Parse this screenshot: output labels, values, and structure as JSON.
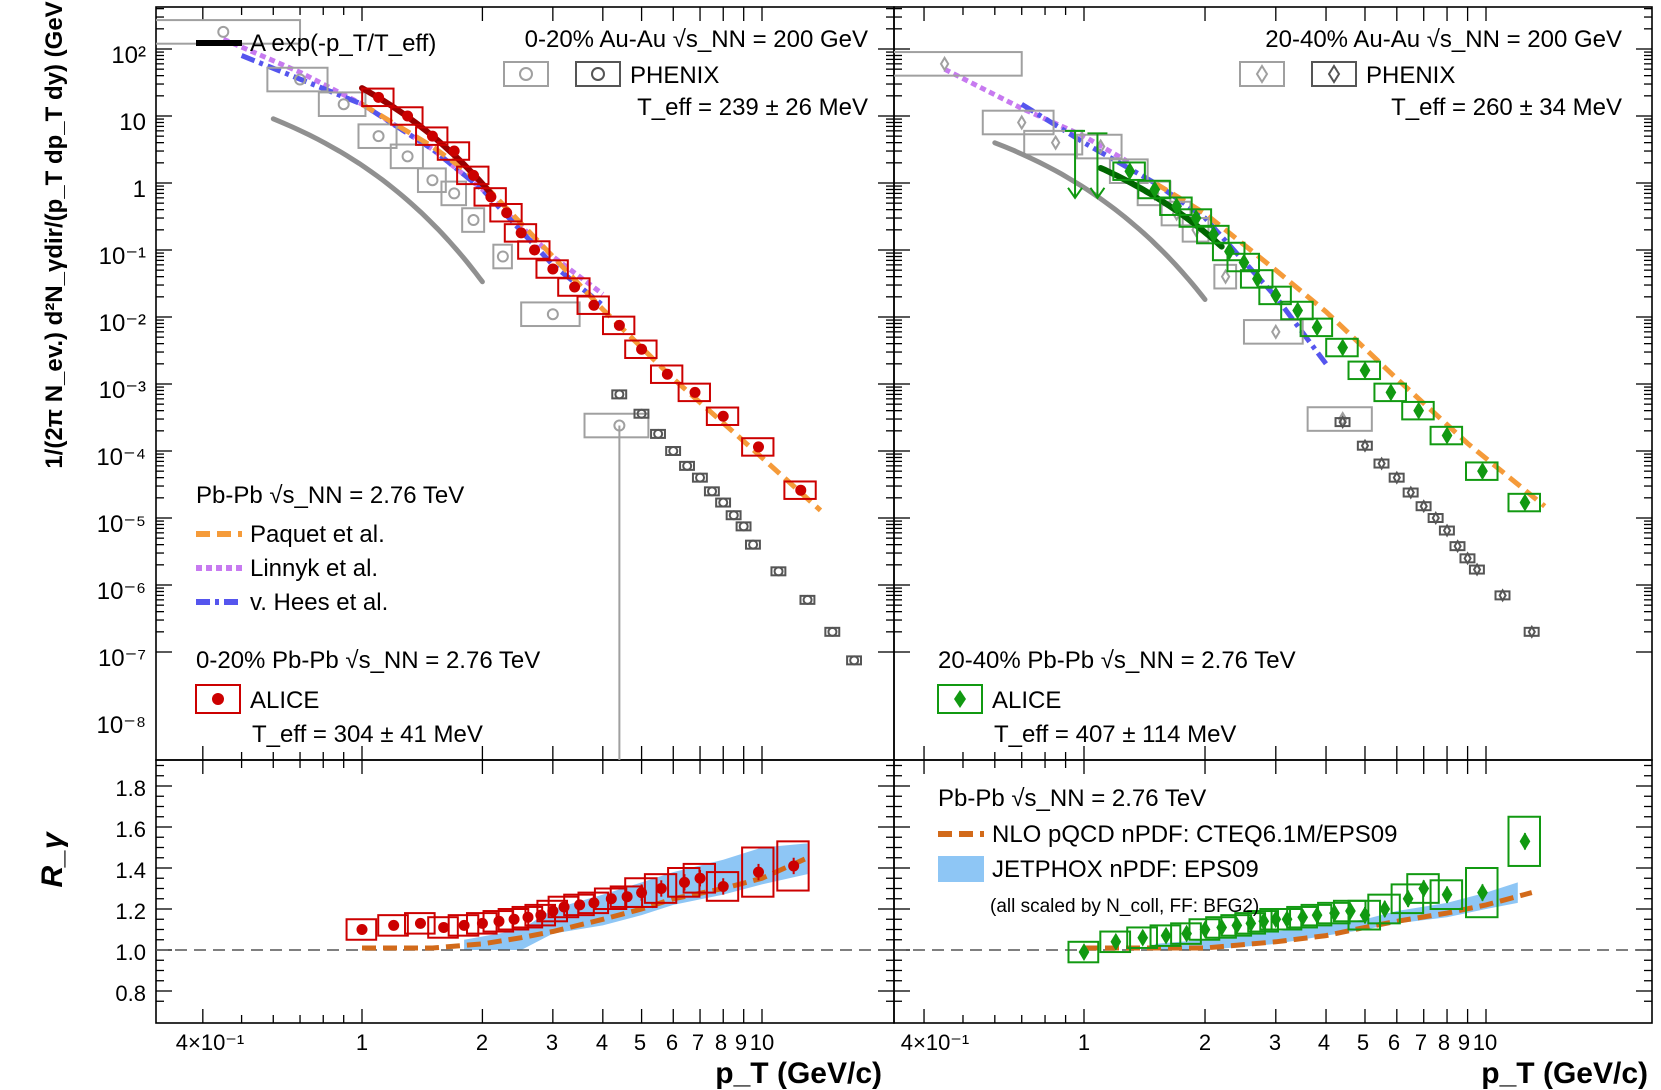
{
  "figure": {
    "x_tick_labels": [
      "4×10⁻¹",
      "1",
      "2",
      "3",
      "4",
      "5",
      "6",
      "7",
      "8",
      "9",
      "10"
    ],
    "x_axis_title": "p_T (GeV/c)",
    "y_axis_title_top": "1/(2π N_ev.) d²N_γdir/(p_T dp_T dy) (GeV⁻²c²)",
    "y_axis_title_bottom": "R_γ",
    "y_tick_labels_top": [
      "10²",
      "10",
      "1",
      "10⁻¹",
      "10⁻²",
      "10⁻³",
      "10⁻⁴",
      "10⁻⁵",
      "10⁻⁶",
      "10⁻⁷",
      "10⁻⁸"
    ],
    "y_tick_labels_bottom": [
      "0.8",
      "1.0",
      "1.2",
      "1.4",
      "1.6",
      "1.8"
    ]
  },
  "legend": {
    "fit_label": "A exp(-p_T/T_eff)",
    "rhic_left": "0-20% Au-Au √s_NN = 200 GeV",
    "rhic_right": "20-40% Au-Au √s_NN = 200 GeV",
    "phenix": "PHENIX",
    "teff_phenix_left": "T_eff = 239 ± 26 MeV",
    "teff_phenix_right": "T_eff = 260 ± 34 MeV",
    "pbpb": "Pb-Pb √s_NN = 2.76 TeV",
    "paquet": "Paquet et al.",
    "linnyk": "Linnyk et al.",
    "vhees": "v. Hees et al.",
    "alice_left_cent": "0-20% Pb-Pb √s_NN = 2.76 TeV",
    "alice_right_cent": "20-40% Pb-Pb √s_NN = 2.76 TeV",
    "alice": "ALICE",
    "teff_alice_left": "T_eff = 304 ± 41 MeV",
    "teff_alice_right": "T_eff = 407 ± 114 MeV",
    "nlo": "NLO pQCD nPDF: CTEQ6.1M/EPS09",
    "jetphox": "JETPHOX nPDF: EPS09",
    "scaled": "(all scaled by N_coll, FF: BFG2)"
  },
  "colors": {
    "alice_020": "#cc0000",
    "alice_2040": "#119911",
    "phenix_light": "#a0a0a0",
    "phenix_dark": "#555555",
    "paquet": "#f59b3a",
    "linnyk": "#c77af0",
    "vhees": "#5555ee",
    "nlo": "#d26a1a",
    "jetphox": "#8ec6f5",
    "fit_020": "#990000",
    "fit_2040": "#006600",
    "fit_phenix": "#909090"
  },
  "chart_data": [
    {
      "panel": "top-left",
      "type": "scatter",
      "x_scale": "log",
      "y_scale": "log",
      "xlim": [
        0.35,
        14.5
      ],
      "ylim": [
        5e-09,
        500
      ],
      "series": [
        {
          "name": "ALICE",
          "x": [
            1.1,
            1.3,
            1.5,
            1.7,
            1.9,
            2.1,
            2.3,
            2.5,
            2.7,
            3.0,
            3.4,
            3.8,
            4.4,
            5.0,
            5.8,
            6.8,
            8.0,
            9.8,
            12.5
          ],
          "y": [
            1.9,
            1.0,
            0.5,
            0.3,
            0.13,
            0.062,
            0.036,
            0.018,
            0.01,
            0.0052,
            0.0028,
            0.0015,
            0.00075,
            0.00033,
            0.00014,
            7.5e-05,
            3.3e-05,
            1.15e-05,
            2.6e-06
          ]
        },
        {
          "name": "PHENIX",
          "x": [
            0.45,
            0.7,
            0.9,
            1.1,
            1.3,
            1.5,
            1.7,
            1.9,
            2.25,
            3.0,
            4.4
          ],
          "y": [
            18,
            3.5,
            1.5,
            0.5,
            0.25,
            0.11,
            0.07,
            0.028,
            0.008,
            0.0011,
            2.4e-05
          ]
        },
        {
          "name": "",
          "x": [
            4.4,
            5.0,
            5.5,
            6.0,
            6.5,
            7.0,
            7.5,
            8.0,
            8.5,
            9.0,
            9.5,
            11,
            13,
            15,
            17
          ],
          "y": [
            7e-05,
            3.6e-05,
            1.8e-05,
            1e-05,
            6e-06,
            4e-06,
            2.5e-06,
            1.7e-06,
            1.1e-06,
            7.5e-07,
            4e-07,
            1.6e-07,
            6e-08,
            2e-08,
            7.5e-09
          ]
        },
        {
          "name": "Paquet et al.",
          "x": [
            1.0,
            1.5,
            2.0,
            3.0,
            4.0,
            6.0,
            9.0,
            14.0
          ],
          "y": [
            1.5,
            0.35,
            0.1,
            0.008,
            0.0013,
            0.00012,
            1.4e-05,
            1.3e-06
          ]
        },
        {
          "name": "Linnyk et al.",
          "x": [
            0.45,
            0.7,
            1.0,
            1.5,
            2.0,
            3.0,
            4.0
          ],
          "y": [
            14,
            4.5,
            1.5,
            0.32,
            0.08,
            0.008,
            0.0022
          ]
        },
        {
          "name": "v. Hees et al.",
          "x": [
            0.5,
            1.0,
            1.5,
            2.0,
            3.0,
            4.0
          ],
          "y": [
            8,
            1.5,
            0.32,
            0.08,
            0.006,
            0.0015
          ]
        }
      ]
    },
    {
      "panel": "top-right",
      "type": "scatter",
      "x_scale": "log",
      "y_scale": "log",
      "xlim": [
        0.35,
        14.5
      ],
      "ylim": [
        5e-09,
        500
      ],
      "series": [
        {
          "name": "ALICE",
          "x": [
            1.3,
            1.5,
            1.7,
            1.9,
            2.1,
            2.3,
            2.5,
            2.7,
            3.0,
            3.4,
            3.8,
            4.4,
            5.0,
            5.8,
            6.8,
            8.0,
            9.8,
            12.5
          ],
          "y": [
            0.15,
            0.08,
            0.045,
            0.03,
            0.017,
            0.0095,
            0.0065,
            0.0037,
            0.0021,
            0.00125,
            0.0007,
            0.00035,
            0.00016,
            7.5e-05,
            4e-05,
            1.7e-05,
            5e-06,
            1.7e-06
          ]
        },
        {
          "name": "PHENIX",
          "x": [
            0.45,
            0.7,
            0.85,
            1.1,
            1.3,
            1.5,
            1.7,
            1.9,
            2.25,
            3.0,
            4.4
          ],
          "y": [
            6,
            0.8,
            0.4,
            0.35,
            0.15,
            0.07,
            0.035,
            0.02,
            0.004,
            0.0006,
            3e-05
          ]
        },
        {
          "name": "",
          "x": [
            4.4,
            5.0,
            5.5,
            6.0,
            6.5,
            7.0,
            7.5,
            8.0,
            8.5,
            9.0,
            9.5,
            11,
            13
          ],
          "y": [
            2.7e-05,
            1.2e-05,
            6.5e-06,
            4e-06,
            2.4e-06,
            1.5e-06,
            1e-06,
            6.5e-07,
            3.8e-07,
            2.5e-07,
            1.7e-07,
            7e-08,
            2e-08
          ]
        },
        {
          "name": "Paquet et al.",
          "x": [
            1.5,
            2.0,
            3.0,
            4.0,
            6.0,
            9.0,
            14.0
          ],
          "y": [
            0.1,
            0.035,
            0.005,
            0.0012,
            0.00012,
            1.3e-05,
            1.5e-06
          ]
        },
        {
          "name": "Linnyk et al.",
          "x": [
            0.45,
            0.7,
            1.0,
            1.3
          ],
          "y": [
            5,
            1.3,
            0.5,
            0.2
          ]
        },
        {
          "name": "v. Hees et al.",
          "x": [
            0.7,
            1.0,
            1.5,
            2.0,
            3.0,
            4.0
          ],
          "y": [
            1.5,
            0.4,
            0.1,
            0.03,
            0.002,
            0.0002
          ]
        }
      ]
    },
    {
      "panel": "bottom-left",
      "type": "scatter",
      "x_scale": "log",
      "xlim": [
        0.35,
        14.5
      ],
      "ylim": [
        0.75,
        1.95
      ],
      "series": [
        {
          "name": "ALICE",
          "x": [
            1.0,
            1.2,
            1.4,
            1.6,
            1.8,
            2.0,
            2.2,
            2.4,
            2.6,
            2.8,
            3.0,
            3.2,
            3.5,
            3.8,
            4.2,
            4.6,
            5.0,
            5.6,
            6.4,
            7.0,
            8.0,
            9.8,
            12.0
          ],
          "y": [
            1.1,
            1.12,
            1.13,
            1.11,
            1.12,
            1.13,
            1.14,
            1.15,
            1.16,
            1.17,
            1.19,
            1.21,
            1.22,
            1.23,
            1.25,
            1.26,
            1.28,
            1.3,
            1.33,
            1.35,
            1.31,
            1.38,
            1.41
          ]
        },
        {
          "name": "NLO pQCD nPDF: CTEQ6.1M/EPS09",
          "x": [
            1.0,
            1.5,
            2.0,
            2.5,
            3.0,
            4.0,
            5.0,
            6.0,
            8.0,
            10.0,
            13.0
          ],
          "y": [
            1.01,
            1.01,
            1.03,
            1.06,
            1.09,
            1.15,
            1.2,
            1.25,
            1.3,
            1.35,
            1.45
          ]
        },
        {
          "name": "JETPHOX nPDF: EPS09",
          "x": [
            1.8,
            2.5,
            3.0,
            4.0,
            5.0,
            6.0,
            8.0,
            10.0,
            13.0
          ],
          "y_low": [
            1.0,
            1.0,
            1.08,
            1.12,
            1.17,
            1.22,
            1.27,
            1.32,
            1.37
          ],
          "y_high": [
            1.05,
            1.1,
            1.2,
            1.27,
            1.33,
            1.38,
            1.44,
            1.5,
            1.52
          ]
        }
      ]
    },
    {
      "panel": "bottom-right",
      "type": "scatter",
      "x_scale": "log",
      "xlim": [
        0.35,
        14.5
      ],
      "ylim": [
        0.75,
        1.95
      ],
      "series": [
        {
          "name": "ALICE",
          "x": [
            1.0,
            1.2,
            1.4,
            1.6,
            1.8,
            2.0,
            2.2,
            2.4,
            2.6,
            2.8,
            3.0,
            3.2,
            3.5,
            3.8,
            4.2,
            4.6,
            5.0,
            5.6,
            6.4,
            7.0,
            8.0,
            9.8,
            12.5
          ],
          "y": [
            0.99,
            1.04,
            1.06,
            1.07,
            1.08,
            1.1,
            1.11,
            1.12,
            1.13,
            1.14,
            1.15,
            1.15,
            1.16,
            1.17,
            1.18,
            1.19,
            1.17,
            1.2,
            1.25,
            1.3,
            1.27,
            1.28,
            1.53
          ]
        },
        {
          "name": "NLO pQCD nPDF: CTEQ6.1M/EPS09",
          "x": [
            1.0,
            1.5,
            2.0,
            3.0,
            4.0,
            5.0,
            6.0,
            8.0,
            10.0,
            13.0
          ],
          "y": [
            1.01,
            1.01,
            1.01,
            1.04,
            1.07,
            1.11,
            1.14,
            1.18,
            1.22,
            1.28
          ]
        },
        {
          "name": "JETPHOX nPDF: EPS09",
          "x": [
            1.5,
            2.0,
            3.0,
            4.0,
            5.0,
            6.0,
            8.0,
            10.0,
            12.0
          ],
          "y_low": [
            1.0,
            1.0,
            1.03,
            1.07,
            1.1,
            1.13,
            1.16,
            1.2,
            1.23
          ],
          "y_high": [
            1.03,
            1.05,
            1.09,
            1.12,
            1.15,
            1.19,
            1.23,
            1.28,
            1.33
          ]
        }
      ]
    }
  ]
}
